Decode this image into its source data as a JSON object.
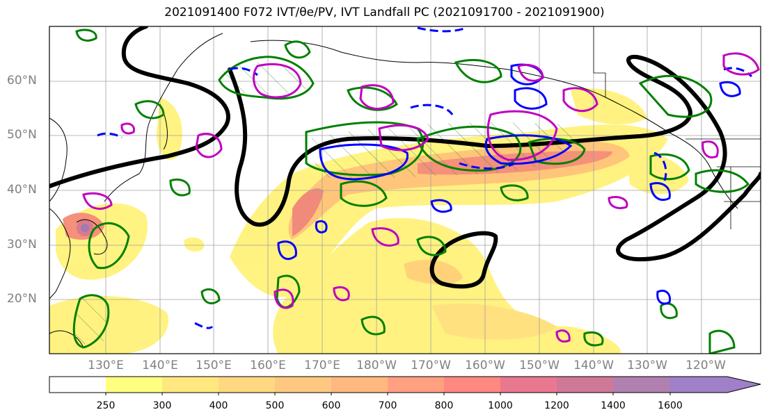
{
  "title": "2021091400 F072 IVT/θe/PV, IVT Landfall PC (2021091700 - 2021091900)",
  "map": {
    "lat_labels": [
      "60°N",
      "50°N",
      "40°N",
      "30°N",
      "20°N"
    ],
    "lon_labels": [
      "130°E",
      "140°E",
      "150°E",
      "160°E",
      "170°E",
      "180°W",
      "170°W",
      "160°W",
      "150°W",
      "140°W",
      "130°W",
      "120°W"
    ]
  },
  "colorbar": {
    "labels": [
      "250",
      "300",
      "400",
      "500",
      "600",
      "700",
      "800",
      "1000",
      "1200",
      "1400",
      "1600"
    ],
    "colors": [
      "#ffffff",
      "#ffff80",
      "#ffe880",
      "#ffd880",
      "#ffc880",
      "#ffb880",
      "#ffa080",
      "#ff8880",
      "#e87890",
      "#d07898",
      "#b080b0",
      "#a080c8"
    ]
  },
  "legend_colors": {
    "ivt_low": "#fff27a",
    "ivt_high": "#e96a70",
    "black_contour": "#000000",
    "green_contour": "#008000",
    "blue_contour": "#0000ff",
    "magenta_contour": "#c000c0"
  }
}
